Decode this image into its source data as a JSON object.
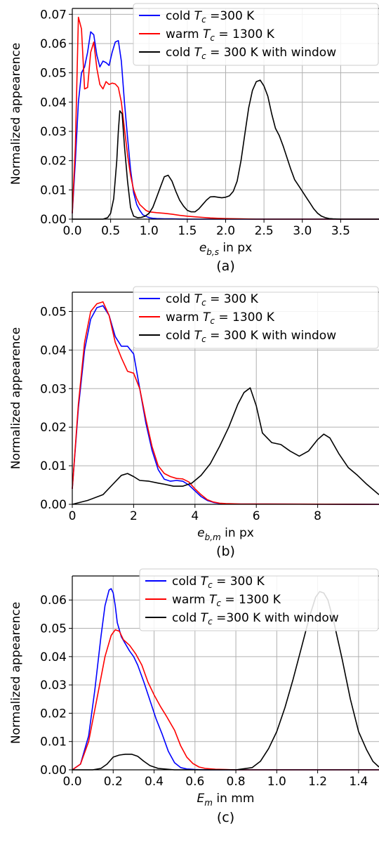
{
  "colors": {
    "blue": "#0000ff",
    "red": "#ff0000",
    "black": "#000000",
    "grid": "#b0b0b0"
  },
  "chart_data": [
    {
      "type": "line",
      "ylabel": "Normalized appearence",
      "xlabel_sym": "e",
      "xlabel_sub": "b,s",
      "xlabel_rest": " in px",
      "caption": "(a)",
      "xlim": [
        0,
        4.0
      ],
      "ylim": [
        0,
        0.072
      ],
      "xticks": [
        0.0,
        0.5,
        1.0,
        1.5,
        2.0,
        2.5,
        3.0,
        3.5
      ],
      "xtick_labels": [
        "0.0",
        "0.5",
        "1.0",
        "1.5",
        "2.0",
        "2.5",
        "3.0",
        "3.5"
      ],
      "yticks": [
        0,
        0.01,
        0.02,
        0.03,
        0.04,
        0.05,
        0.06,
        0.07
      ],
      "ytick_labels": [
        "0.00",
        "0.01",
        "0.02",
        "0.03",
        "0.04",
        "0.05",
        "0.06",
        "0.07"
      ],
      "legend": {
        "placement": "top-right"
      },
      "series": [
        {
          "color": "blue",
          "label_pre": "cold ",
          "label_post": " =300 K",
          "x": [
            0.0,
            0.04,
            0.08,
            0.12,
            0.16,
            0.2,
            0.24,
            0.28,
            0.32,
            0.36,
            0.4,
            0.44,
            0.48,
            0.52,
            0.56,
            0.6,
            0.64,
            0.68,
            0.72,
            0.76,
            0.8,
            0.84,
            0.88,
            0.92,
            0.96,
            1.0,
            1.05,
            1.1,
            1.2,
            1.3,
            1.5,
            2.0,
            4.0
          ],
          "y": [
            0.002,
            0.02,
            0.04,
            0.05,
            0.052,
            0.057,
            0.064,
            0.063,
            0.056,
            0.052,
            0.054,
            0.0535,
            0.0525,
            0.057,
            0.0605,
            0.061,
            0.054,
            0.04,
            0.028,
            0.017,
            0.009,
            0.005,
            0.003,
            0.0015,
            0.001,
            0.0005,
            0.0003,
            0.0002,
            0.0001,
            0.0001,
            0.0,
            0.0,
            0.0
          ]
        },
        {
          "color": "red",
          "label_pre": "warm ",
          "label_post": " = 1300 K",
          "x": [
            0.0,
            0.04,
            0.08,
            0.12,
            0.16,
            0.2,
            0.24,
            0.28,
            0.32,
            0.36,
            0.4,
            0.44,
            0.48,
            0.52,
            0.56,
            0.6,
            0.64,
            0.68,
            0.72,
            0.76,
            0.8,
            0.84,
            0.88,
            0.92,
            0.96,
            1.0,
            1.1,
            1.2,
            1.3,
            1.4,
            1.5,
            1.6,
            1.7,
            1.8,
            1.9,
            2.0,
            2.2,
            2.4,
            4.0
          ],
          "y": [
            0.002,
            0.025,
            0.069,
            0.065,
            0.0445,
            0.045,
            0.057,
            0.0605,
            0.0515,
            0.046,
            0.0445,
            0.047,
            0.046,
            0.0465,
            0.0462,
            0.045,
            0.04,
            0.031,
            0.022,
            0.015,
            0.01,
            0.007,
            0.005,
            0.004,
            0.003,
            0.0025,
            0.0022,
            0.002,
            0.0017,
            0.0013,
            0.001,
            0.0008,
            0.0006,
            0.0004,
            0.0003,
            0.0002,
            0.0001,
            0.0,
            0.0
          ]
        },
        {
          "color": "black",
          "label_pre": "cold ",
          "label_post": " = 300 K with window",
          "x": [
            0.0,
            0.4,
            0.46,
            0.5,
            0.54,
            0.58,
            0.6,
            0.62,
            0.65,
            0.68,
            0.72,
            0.76,
            0.8,
            0.85,
            0.9,
            0.95,
            1.0,
            1.05,
            1.1,
            1.15,
            1.2,
            1.25,
            1.3,
            1.35,
            1.4,
            1.45,
            1.5,
            1.55,
            1.6,
            1.65,
            1.7,
            1.75,
            1.8,
            1.85,
            1.9,
            1.95,
            2.0,
            2.05,
            2.1,
            2.15,
            2.2,
            2.25,
            2.3,
            2.35,
            2.4,
            2.45,
            2.5,
            2.55,
            2.6,
            2.65,
            2.7,
            2.75,
            2.8,
            2.85,
            2.9,
            2.95,
            3.0,
            3.05,
            3.1,
            3.15,
            3.2,
            3.25,
            3.3,
            3.35,
            3.4,
            3.5,
            4.0
          ],
          "y": [
            0.0,
            0.0,
            0.0005,
            0.002,
            0.007,
            0.02,
            0.03,
            0.037,
            0.036,
            0.025,
            0.013,
            0.004,
            0.001,
            0.0005,
            0.0006,
            0.001,
            0.002,
            0.004,
            0.0075,
            0.011,
            0.0145,
            0.015,
            0.013,
            0.0095,
            0.0065,
            0.0045,
            0.003,
            0.0025,
            0.0025,
            0.0035,
            0.005,
            0.0065,
            0.0076,
            0.0077,
            0.0075,
            0.0073,
            0.0075,
            0.008,
            0.0095,
            0.013,
            0.02,
            0.029,
            0.038,
            0.044,
            0.047,
            0.0475,
            0.0455,
            0.042,
            0.036,
            0.031,
            0.0285,
            0.025,
            0.021,
            0.017,
            0.0135,
            0.0115,
            0.0095,
            0.0075,
            0.0055,
            0.0035,
            0.002,
            0.001,
            0.0005,
            0.0002,
            0.0001,
            0.0,
            0.0
          ]
        }
      ]
    },
    {
      "type": "line",
      "ylabel": "Normalized appearence",
      "xlabel_sym": "e",
      "xlabel_sub": "b,m",
      "xlabel_rest": " in px",
      "caption": "(b)",
      "xlim": [
        0,
        10
      ],
      "ylim": [
        0,
        0.055
      ],
      "xticks": [
        0,
        2,
        4,
        6,
        8
      ],
      "xtick_labels": [
        "0",
        "2",
        "4",
        "6",
        "8"
      ],
      "yticks": [
        0,
        0.01,
        0.02,
        0.03,
        0.04,
        0.05
      ],
      "ytick_labels": [
        "0.00",
        "0.01",
        "0.02",
        "0.03",
        "0.04",
        "0.05"
      ],
      "legend": {
        "placement": "top-right"
      },
      "series": [
        {
          "color": "blue",
          "label_pre": "cold ",
          "label_post": " = 300 K",
          "x": [
            0.0,
            0.2,
            0.4,
            0.6,
            0.8,
            1.0,
            1.2,
            1.4,
            1.6,
            1.8,
            2.0,
            2.2,
            2.4,
            2.6,
            2.8,
            3.0,
            3.2,
            3.4,
            3.6,
            3.8,
            4.0,
            4.2,
            4.4,
            4.6,
            4.8,
            5.0,
            10.0
          ],
          "y": [
            0.004,
            0.025,
            0.04,
            0.048,
            0.051,
            0.0515,
            0.049,
            0.0435,
            0.041,
            0.041,
            0.039,
            0.03,
            0.021,
            0.014,
            0.009,
            0.0065,
            0.006,
            0.0062,
            0.006,
            0.005,
            0.0035,
            0.002,
            0.001,
            0.0005,
            0.0002,
            0.0001,
            0.0
          ]
        },
        {
          "color": "red",
          "label_pre": "warm ",
          "label_post": " = 1300 K",
          "x": [
            0.0,
            0.2,
            0.4,
            0.6,
            0.8,
            1.0,
            1.2,
            1.4,
            1.6,
            1.8,
            2.0,
            2.2,
            2.4,
            2.6,
            2.8,
            3.0,
            3.2,
            3.4,
            3.6,
            3.8,
            4.0,
            4.2,
            4.4,
            4.6,
            4.8,
            5.0,
            5.5,
            10.0
          ],
          "y": [
            0.004,
            0.026,
            0.042,
            0.05,
            0.052,
            0.0525,
            0.049,
            0.042,
            0.038,
            0.0345,
            0.034,
            0.03,
            0.022,
            0.015,
            0.01,
            0.008,
            0.0072,
            0.0067,
            0.0066,
            0.0058,
            0.004,
            0.0025,
            0.0012,
            0.0006,
            0.0003,
            0.0002,
            0.0001,
            0.0
          ]
        },
        {
          "color": "black",
          "label_pre": "cold ",
          "label_post": " = 300 K with window",
          "x": [
            0.0,
            0.5,
            1.0,
            1.3,
            1.6,
            1.8,
            2.0,
            2.2,
            2.5,
            2.8,
            3.0,
            3.3,
            3.6,
            3.9,
            4.2,
            4.5,
            4.8,
            5.1,
            5.4,
            5.6,
            5.8,
            6.0,
            6.2,
            6.5,
            6.8,
            7.1,
            7.4,
            7.7,
            8.0,
            8.2,
            8.4,
            8.7,
            9.0,
            9.3,
            9.6,
            10.0
          ],
          "y": [
            0.0,
            0.001,
            0.0025,
            0.005,
            0.0075,
            0.008,
            0.0072,
            0.0062,
            0.006,
            0.0055,
            0.0052,
            0.0047,
            0.0047,
            0.0055,
            0.0075,
            0.0105,
            0.015,
            0.02,
            0.026,
            0.029,
            0.0302,
            0.0255,
            0.0185,
            0.016,
            0.0155,
            0.0138,
            0.0125,
            0.0138,
            0.0168,
            0.0182,
            0.0172,
            0.013,
            0.0095,
            0.0075,
            0.0052,
            0.0025
          ]
        }
      ]
    },
    {
      "type": "line",
      "ylabel": "Normalized appearence",
      "xlabel_sym": "E",
      "xlabel_sub": "m",
      "xlabel_rest": " in mm",
      "caption": "(c)",
      "xlim": [
        0,
        1.5
      ],
      "ylim": [
        0,
        0.0685
      ],
      "xticks": [
        0.0,
        0.2,
        0.4,
        0.6,
        0.8,
        1.0,
        1.2,
        1.4
      ],
      "xtick_labels": [
        "0.0",
        "0.2",
        "0.4",
        "0.6",
        "0.8",
        "1.0",
        "1.2",
        "1.4"
      ],
      "yticks": [
        0,
        0.01,
        0.02,
        0.03,
        0.04,
        0.05,
        0.06
      ],
      "ytick_labels": [
        "0.00",
        "0.01",
        "0.02",
        "0.03",
        "0.04",
        "0.05",
        "0.06"
      ],
      "legend": {
        "placement": "top-right"
      },
      "series": [
        {
          "color": "blue",
          "label_pre": "cold ",
          "label_post": " = 300 K",
          "x": [
            0.0,
            0.04,
            0.08,
            0.11,
            0.14,
            0.16,
            0.18,
            0.19,
            0.2,
            0.21,
            0.22,
            0.24,
            0.26,
            0.28,
            0.3,
            0.32,
            0.35,
            0.38,
            0.41,
            0.44,
            0.47,
            0.5,
            0.53,
            0.56,
            0.6,
            0.65,
            1.5
          ],
          "y": [
            0.0,
            0.002,
            0.012,
            0.028,
            0.047,
            0.058,
            0.0635,
            0.064,
            0.0625,
            0.058,
            0.052,
            0.047,
            0.0445,
            0.042,
            0.04,
            0.037,
            0.031,
            0.0245,
            0.018,
            0.0125,
            0.0065,
            0.0025,
            0.0008,
            0.0003,
            0.0001,
            0.0,
            0.0
          ]
        },
        {
          "color": "red",
          "label_pre": "warm ",
          "label_post": " = 1300 K",
          "x": [
            0.0,
            0.04,
            0.08,
            0.12,
            0.16,
            0.19,
            0.21,
            0.23,
            0.25,
            0.28,
            0.31,
            0.34,
            0.37,
            0.4,
            0.43,
            0.46,
            0.5,
            0.53,
            0.56,
            0.59,
            0.62,
            0.65,
            0.7,
            0.75,
            0.8,
            1.5
          ],
          "y": [
            0.0,
            0.002,
            0.01,
            0.025,
            0.04,
            0.0475,
            0.0495,
            0.049,
            0.046,
            0.044,
            0.041,
            0.037,
            0.031,
            0.0265,
            0.0225,
            0.019,
            0.014,
            0.0085,
            0.0045,
            0.0022,
            0.001,
            0.0005,
            0.0002,
            0.0001,
            0.0,
            0.0
          ]
        },
        {
          "color": "black",
          "label_pre": "cold ",
          "label_post": " =300 K with window",
          "x": [
            0.0,
            0.1,
            0.14,
            0.17,
            0.2,
            0.23,
            0.26,
            0.29,
            0.32,
            0.35,
            0.38,
            0.42,
            0.5,
            0.8,
            0.88,
            0.92,
            0.96,
            1.0,
            1.04,
            1.08,
            1.12,
            1.16,
            1.19,
            1.21,
            1.23,
            1.25,
            1.28,
            1.32,
            1.36,
            1.4,
            1.44,
            1.47,
            1.5
          ],
          "y": [
            0.0,
            0.0,
            0.0005,
            0.002,
            0.0045,
            0.0052,
            0.0055,
            0.0055,
            0.0048,
            0.003,
            0.0015,
            0.0005,
            0.0,
            0.0,
            0.0008,
            0.003,
            0.0075,
            0.0135,
            0.022,
            0.032,
            0.043,
            0.054,
            0.061,
            0.063,
            0.0625,
            0.06,
            0.052,
            0.039,
            0.025,
            0.0135,
            0.007,
            0.003,
            0.001
          ]
        }
      ]
    }
  ]
}
